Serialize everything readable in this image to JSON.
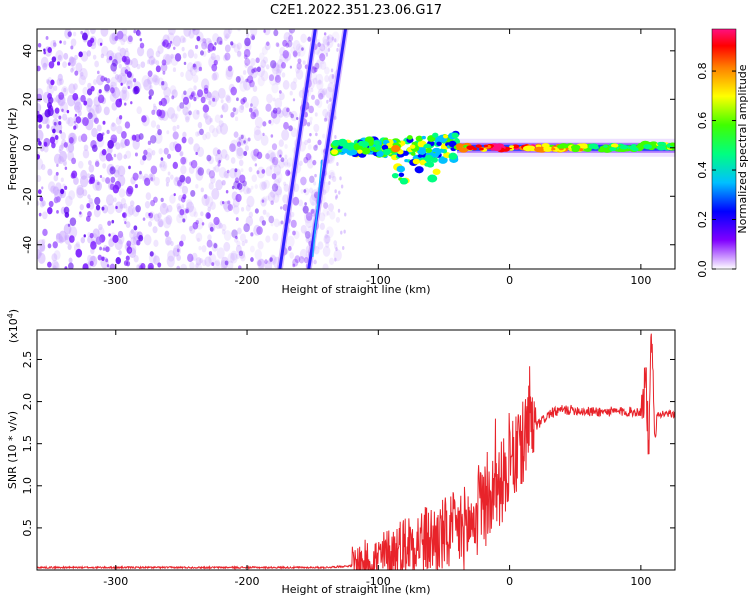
{
  "title": "C2E1.2022.351.23.06.G17",
  "chart_data": [
    {
      "type": "heatmap",
      "xlabel": "Height of straight line (km)",
      "ylabel": "Frequency (Hz)",
      "xlim": [
        -360,
        126
      ],
      "ylim": [
        -50,
        49
      ],
      "xticks": [
        -300,
        -200,
        -100,
        0,
        100
      ],
      "yticks": [
        -40,
        -20,
        0,
        20,
        40
      ],
      "colorbar": {
        "label": "Normalized spectral amplitude",
        "range": [
          0,
          0.97
        ],
        "ticks": [
          0.0,
          0.2,
          0.4,
          0.6,
          0.8
        ],
        "colors": [
          "#ffffff",
          "#8000ff",
          "#0000ff",
          "#00c0ff",
          "#00ff80",
          "#40ff00",
          "#ffff00",
          "#ff8000",
          "#ff0000",
          "#ff1080"
        ]
      },
      "features": [
        {
          "name": "noise",
          "x_range": [
            -360,
            -130
          ],
          "y_range": [
            -50,
            49
          ],
          "amplitude": 0.05
        },
        {
          "name": "diagonal line 1",
          "x": [
            -175,
            -148
          ],
          "y": [
            -50,
            49
          ],
          "amplitude": 0.15
        },
        {
          "name": "diagonal line 2",
          "x": [
            -153,
            -125
          ],
          "y": [
            -50,
            49
          ],
          "amplitude": 0.25
        },
        {
          "name": "signal band",
          "x_range": [
            -135,
            126
          ],
          "y": 0,
          "amplitude_peak": 0.9
        }
      ]
    },
    {
      "type": "line",
      "xlabel": "Height of straight line (km)",
      "ylabel": "SNR (10 * v/v)",
      "y_scale_label": "(x10",
      "y_scale_exp": "4",
      "y_scale_close": ")",
      "xlim": [
        -360,
        126
      ],
      "ylim": [
        0,
        2.85
      ],
      "xticks": [
        -300,
        -200,
        -100,
        0,
        100
      ],
      "yticks": [
        0.5,
        1.0,
        1.5,
        2.0,
        2.5
      ],
      "series": [
        {
          "color": "#e8232a",
          "x": [
            -360,
            -300,
            -200,
            -140,
            -120,
            -110,
            -100,
            -90,
            -80,
            -70,
            -60,
            -50,
            -40,
            -30,
            -20,
            -10,
            0,
            10,
            20,
            30,
            40,
            50,
            60,
            70,
            80,
            90,
            100,
            104,
            106,
            108,
            110,
            126
          ],
          "y": [
            0.03,
            0.03,
            0.03,
            0.03,
            0.05,
            0.08,
            0.12,
            0.2,
            0.3,
            0.35,
            0.35,
            0.4,
            0.45,
            0.55,
            0.7,
            0.95,
            1.2,
            1.5,
            1.7,
            1.85,
            1.9,
            1.9,
            1.88,
            1.88,
            1.88,
            1.88,
            1.88,
            2.3,
            1.3,
            2.8,
            1.85,
            1.85
          ]
        }
      ]
    }
  ]
}
